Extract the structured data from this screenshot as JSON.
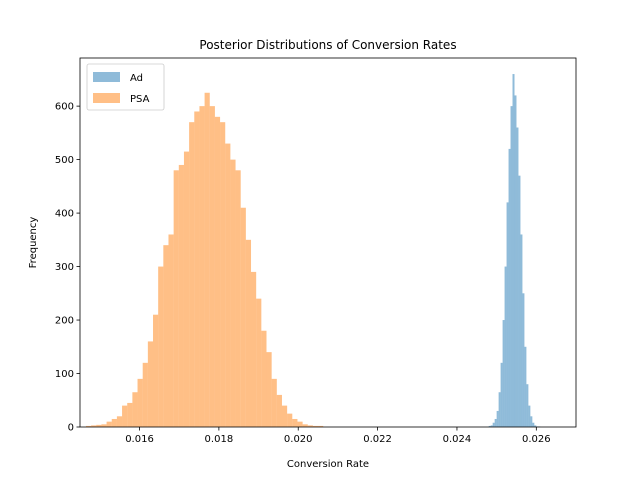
{
  "chart_data": {
    "type": "histogram",
    "title": "Posterior Distributions of Conversion Rates",
    "xlabel": "Conversion Rate",
    "ylabel": "Frequency",
    "xlim": [
      0.0145,
      0.027
    ],
    "ylim": [
      0,
      690
    ],
    "xticks": [
      0.016,
      0.018,
      0.02,
      0.022,
      0.024,
      0.026
    ],
    "xtick_labels": [
      "0.016",
      "0.018",
      "0.020",
      "0.022",
      "0.024",
      "0.026"
    ],
    "yticks": [
      0,
      100,
      200,
      300,
      400,
      500,
      600
    ],
    "ytick_labels": [
      "0",
      "100",
      "200",
      "300",
      "400",
      "500",
      "600"
    ],
    "legend_position": "top-left",
    "series": [
      {
        "name": "Ad",
        "color": "#1f77b4",
        "opacity": 0.5,
        "bin_start": 0.0248,
        "bin_width": 5e-05,
        "counts": [
          2,
          3,
          8,
          15,
          30,
          65,
          120,
          200,
          300,
          420,
          520,
          600,
          660,
          620,
          560,
          470,
          360,
          250,
          150,
          80,
          40,
          20,
          8,
          3,
          1,
          1
        ]
      },
      {
        "name": "PSA",
        "color": "#ff7f0e",
        "opacity": 0.5,
        "bin_start": 0.01465,
        "bin_width": 0.00013,
        "counts": [
          2,
          3,
          4,
          5,
          10,
          15,
          20,
          40,
          45,
          65,
          90,
          120,
          160,
          210,
          300,
          340,
          360,
          480,
          490,
          515,
          570,
          590,
          600,
          625,
          600,
          580,
          570,
          530,
          500,
          480,
          410,
          350,
          290,
          240,
          180,
          140,
          90,
          60,
          40,
          25,
          15,
          10,
          5,
          3,
          2,
          2
        ]
      }
    ]
  }
}
